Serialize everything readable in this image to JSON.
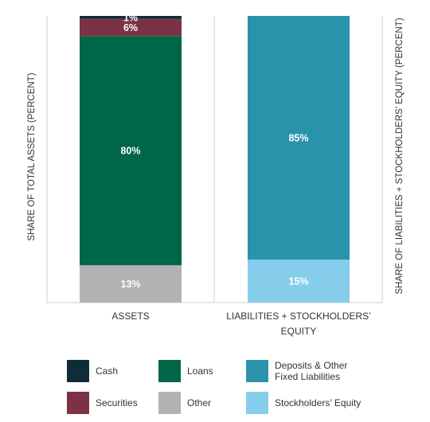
{
  "chart_data": {
    "type": "bar",
    "stacked": true,
    "y_left_label": "SHARE OF TOTAL ASSETS (PERCENT)",
    "y_right_label": "SHARE OF LIABILITIES + STOCKHOLDERS’ EQUITY (PERCENT)",
    "ylim": [
      0,
      100
    ],
    "bars": [
      {
        "category": "ASSETS",
        "segments": [
          {
            "name": "Other",
            "value": 13,
            "label": "13%",
            "color": "#b2b2b4",
            "label_color": "#ffffff"
          },
          {
            "name": "Loans",
            "value": 80,
            "label": "80%",
            "color": "#006648",
            "label_color": "#ffffff"
          },
          {
            "name": "Securities",
            "value": 6,
            "label": "6%",
            "color": "#7b3245",
            "label_color": "#ffffff"
          },
          {
            "name": "Cash",
            "value": 1,
            "label": "1%",
            "color": "#0f2d38",
            "label_color": "#ffffff"
          }
        ]
      },
      {
        "category": "LIABILITIES + STOCKHOLDERS’ EQUITY",
        "segments": [
          {
            "name": "Stockholders’ Equity",
            "value": 15,
            "label": "15%",
            "color": "#86cdeb",
            "label_color": "#ffffff"
          },
          {
            "name": "Deposits & Other Fixed Liabilities",
            "value": 85,
            "label": "85%",
            "color": "#2a93ab",
            "label_color": "#ffffff"
          }
        ]
      }
    ],
    "legend": [
      {
        "label": "Cash",
        "color": "#0f2d38"
      },
      {
        "label": "Loans",
        "color": "#006648"
      },
      {
        "label": "Deposits & Other\nFixed Liabilities",
        "color": "#2a93ab"
      },
      {
        "label": "Securities",
        "color": "#7b3245"
      },
      {
        "label": "Other",
        "color": "#b2b2b4"
      },
      {
        "label": "Stockholders’ Equity",
        "color": "#86cdeb"
      }
    ]
  }
}
